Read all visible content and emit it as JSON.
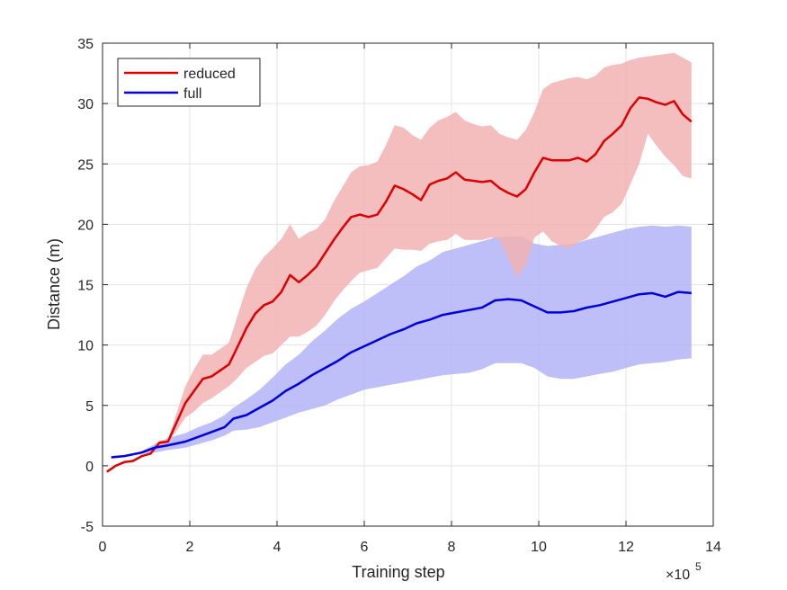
{
  "chart_data": {
    "type": "line",
    "xlabel": "Training step",
    "ylabel": "Distance (m)",
    "x_exponent_label": "×10",
    "x_exponent_power": "5",
    "xlim": [
      0,
      14
    ],
    "ylim": [
      -5,
      35
    ],
    "xticks": [
      0,
      2,
      4,
      6,
      8,
      10,
      12,
      14
    ],
    "yticks": [
      -5,
      0,
      5,
      10,
      15,
      20,
      25,
      30,
      35
    ],
    "xtick_labels": [
      "0",
      "2",
      "4",
      "6",
      "8",
      "10",
      "12",
      "14"
    ],
    "ytick_labels": [
      "-5",
      "0",
      "5",
      "10",
      "15",
      "20",
      "25",
      "30",
      "35"
    ],
    "grid": true,
    "legend_position": "top-left",
    "series": [
      {
        "name": "reduced",
        "color": "#dd0000",
        "band_color": "#f2b3b3",
        "x": [
          0.1,
          0.3,
          0.5,
          0.7,
          0.9,
          1.1,
          1.3,
          1.5,
          1.7,
          1.9,
          2.1,
          2.3,
          2.5,
          2.7,
          2.9,
          3.1,
          3.3,
          3.5,
          3.7,
          3.9,
          4.1,
          4.3,
          4.5,
          4.7,
          4.9,
          5.1,
          5.3,
          5.5,
          5.7,
          5.9,
          6.1,
          6.3,
          6.5,
          6.7,
          6.9,
          7.1,
          7.3,
          7.5,
          7.7,
          7.9,
          8.1,
          8.3,
          8.5,
          8.7,
          8.9,
          9.1,
          9.3,
          9.5,
          9.7,
          9.9,
          10.1,
          10.3,
          10.5,
          10.7,
          10.9,
          11.1,
          11.3,
          11.5,
          11.7,
          11.9,
          12.1,
          12.3,
          12.5,
          12.7,
          12.9,
          13.1,
          13.3,
          13.5
        ],
        "y": [
          -0.5,
          0.0,
          0.3,
          0.4,
          0.8,
          1.0,
          1.9,
          2.0,
          3.6,
          5.2,
          6.2,
          7.2,
          7.4,
          7.9,
          8.4,
          9.9,
          11.4,
          12.6,
          13.3,
          13.6,
          14.4,
          15.8,
          15.2,
          15.8,
          16.5,
          17.6,
          18.7,
          19.7,
          20.6,
          20.8,
          20.6,
          20.8,
          21.9,
          23.2,
          22.9,
          22.5,
          22.0,
          23.3,
          23.6,
          23.8,
          24.3,
          23.7,
          23.6,
          23.5,
          23.6,
          23.0,
          22.6,
          22.3,
          22.9,
          24.3,
          25.5,
          25.3,
          25.3,
          25.3,
          25.5,
          25.2,
          25.8,
          26.9,
          27.5,
          28.2,
          29.6,
          30.5,
          30.4,
          30.1,
          29.9,
          30.2,
          29.1,
          28.5
        ],
        "lower": [
          -0.5,
          0.0,
          0.3,
          0.4,
          0.8,
          1.0,
          1.7,
          1.9,
          2.9,
          4.0,
          4.5,
          5.2,
          5.6,
          6.1,
          6.6,
          7.3,
          8.1,
          8.6,
          9.1,
          9.3,
          10.0,
          10.7,
          10.7,
          11.1,
          11.6,
          12.5,
          13.6,
          14.5,
          15.3,
          16.0,
          16.2,
          16.4,
          17.2,
          18.0,
          17.9,
          17.9,
          17.8,
          18.4,
          18.6,
          18.7,
          19.2,
          18.7,
          18.7,
          18.7,
          18.9,
          18.8,
          17.2,
          15.6,
          16.6,
          18.9,
          19.4,
          18.6,
          18.2,
          18.0,
          18.5,
          18.8,
          19.6,
          20.6,
          21.0,
          21.7,
          23.3,
          25.0,
          27.5,
          26.5,
          25.6,
          24.9,
          24.0,
          23.8
        ],
        "upper": [
          -0.5,
          0.0,
          0.3,
          0.4,
          0.8,
          1.0,
          2.1,
          2.2,
          4.4,
          6.6,
          8.0,
          9.2,
          9.2,
          9.7,
          10.2,
          12.5,
          14.7,
          16.3,
          17.3,
          18.0,
          18.8,
          20.0,
          18.8,
          19.3,
          19.6,
          20.4,
          21.9,
          23.1,
          24.3,
          24.8,
          24.9,
          25.2,
          26.6,
          28.2,
          28.0,
          27.4,
          27.0,
          28.0,
          28.6,
          28.9,
          29.3,
          28.6,
          28.3,
          28.1,
          28.2,
          27.5,
          27.2,
          27.0,
          27.8,
          29.3,
          31.2,
          31.7,
          31.9,
          32.1,
          32.2,
          32.0,
          32.3,
          33.0,
          33.2,
          33.3,
          33.6,
          33.8,
          33.9,
          34.0,
          34.1,
          34.2,
          33.8,
          33.4
        ]
      },
      {
        "name": "full",
        "color": "#0000dd",
        "band_color": "#b3b3f7",
        "x": [
          0.2,
          0.5,
          0.9,
          1.2,
          1.5,
          1.9,
          2.2,
          2.5,
          2.8,
          3.0,
          3.3,
          3.6,
          3.9,
          4.2,
          4.5,
          4.8,
          5.1,
          5.4,
          5.7,
          6.0,
          6.3,
          6.6,
          6.9,
          7.2,
          7.5,
          7.8,
          8.1,
          8.4,
          8.7,
          9.0,
          9.3,
          9.6,
          9.9,
          10.2,
          10.5,
          10.8,
          11.1,
          11.4,
          11.7,
          12.0,
          12.3,
          12.6,
          12.9,
          13.2,
          13.5
        ],
        "y": [
          0.7,
          0.8,
          1.1,
          1.5,
          1.7,
          2.0,
          2.4,
          2.8,
          3.2,
          3.9,
          4.2,
          4.8,
          5.4,
          6.2,
          6.8,
          7.5,
          8.1,
          8.7,
          9.4,
          9.9,
          10.4,
          10.9,
          11.3,
          11.8,
          12.1,
          12.5,
          12.7,
          12.9,
          13.1,
          13.7,
          13.8,
          13.7,
          13.2,
          12.7,
          12.7,
          12.8,
          13.1,
          13.3,
          13.6,
          13.9,
          14.2,
          14.3,
          14.0,
          14.4,
          14.3
        ],
        "lower": [
          0.7,
          0.8,
          1.0,
          1.1,
          1.3,
          1.5,
          1.8,
          2.1,
          2.5,
          2.9,
          3.0,
          3.2,
          3.6,
          4.0,
          4.4,
          4.7,
          5.0,
          5.5,
          5.9,
          6.3,
          6.5,
          6.7,
          6.9,
          7.1,
          7.3,
          7.5,
          7.6,
          7.7,
          8.0,
          8.5,
          8.5,
          8.5,
          8.1,
          7.4,
          7.2,
          7.2,
          7.4,
          7.6,
          7.8,
          8.1,
          8.4,
          8.5,
          8.6,
          8.8,
          8.9
        ],
        "upper": [
          0.7,
          0.8,
          1.2,
          1.8,
          2.3,
          2.7,
          3.2,
          3.6,
          4.2,
          4.8,
          5.5,
          6.3,
          7.3,
          8.4,
          9.2,
          10.3,
          11.2,
          12.2,
          13.0,
          13.6,
          14.3,
          15.0,
          15.7,
          16.5,
          17.0,
          17.7,
          18.0,
          18.3,
          18.6,
          18.9,
          19.0,
          19.0,
          18.4,
          18.2,
          18.3,
          18.4,
          18.7,
          19.0,
          19.3,
          19.6,
          19.8,
          19.9,
          19.8,
          19.9,
          19.8
        ]
      }
    ]
  }
}
